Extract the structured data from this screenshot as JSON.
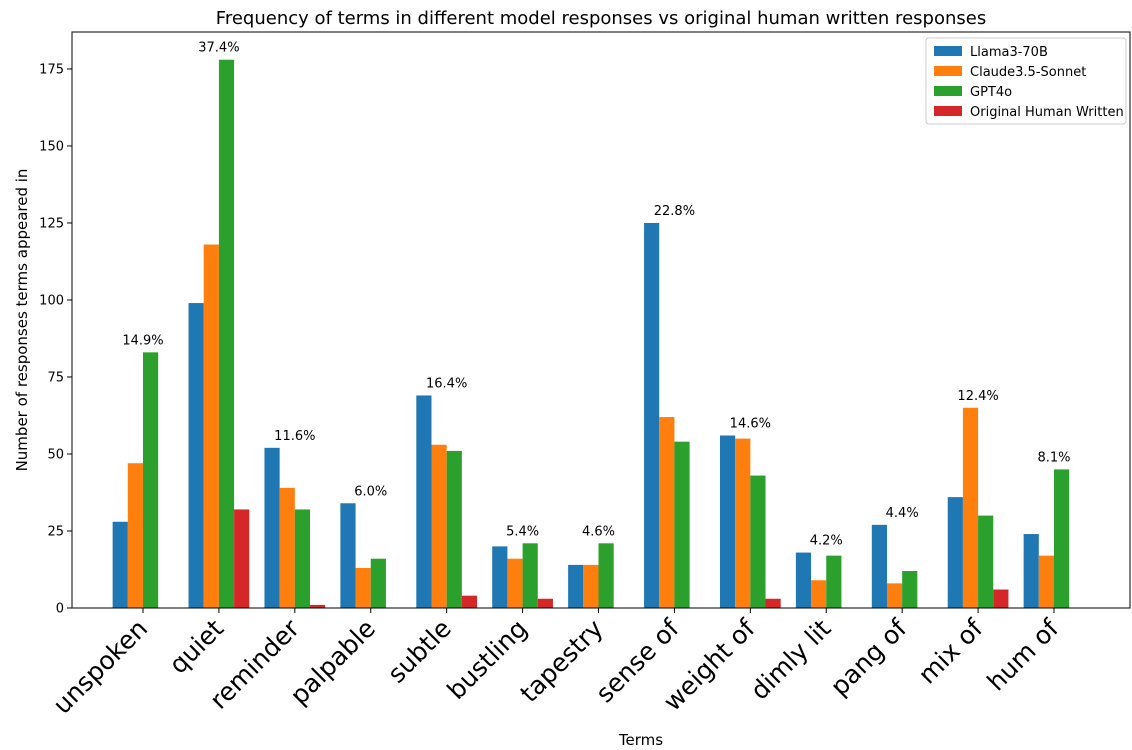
{
  "chart_data": {
    "type": "bar",
    "title": "Frequency of terms in different model responses vs original human written responses",
    "xlabel": "Terms",
    "ylabel": "Number of responses terms appeared in",
    "ylim": [
      0,
      187
    ],
    "yticks": [
      0,
      25,
      50,
      75,
      100,
      125,
      150,
      175
    ],
    "legend_position": "top-right",
    "categories": [
      "unspoken",
      "quiet",
      "reminder",
      "palpable",
      "subtle",
      "bustling",
      "tapestry",
      "sense of",
      "weight of",
      "dimly lit",
      "pang of",
      "mix of",
      "hum of"
    ],
    "series": [
      {
        "name": "Llama3-70B",
        "color": "#1f77b4",
        "values": [
          28,
          99,
          52,
          34,
          69,
          20,
          14,
          125,
          56,
          18,
          27,
          36,
          24
        ]
      },
      {
        "name": "Claude3.5-Sonnet",
        "color": "#ff7f0e",
        "values": [
          47,
          118,
          39,
          13,
          53,
          16,
          14,
          62,
          55,
          9,
          8,
          65,
          17
        ]
      },
      {
        "name": "GPT4o",
        "color": "#2ca02c",
        "values": [
          83,
          178,
          32,
          16,
          51,
          21,
          21,
          54,
          43,
          17,
          12,
          30,
          45
        ]
      },
      {
        "name": "Original Human Written",
        "color": "#d62728",
        "values": [
          0,
          32,
          1,
          0,
          4,
          3,
          0,
          0,
          3,
          0,
          0,
          6,
          0
        ]
      }
    ],
    "annotations": [
      "14.9%",
      "37.4%",
      "11.6%",
      "6.0%",
      "16.4%",
      "5.4%",
      "4.6%",
      "22.8%",
      "14.6%",
      "4.2%",
      "4.4%",
      "12.4%",
      "8.1%"
    ]
  }
}
